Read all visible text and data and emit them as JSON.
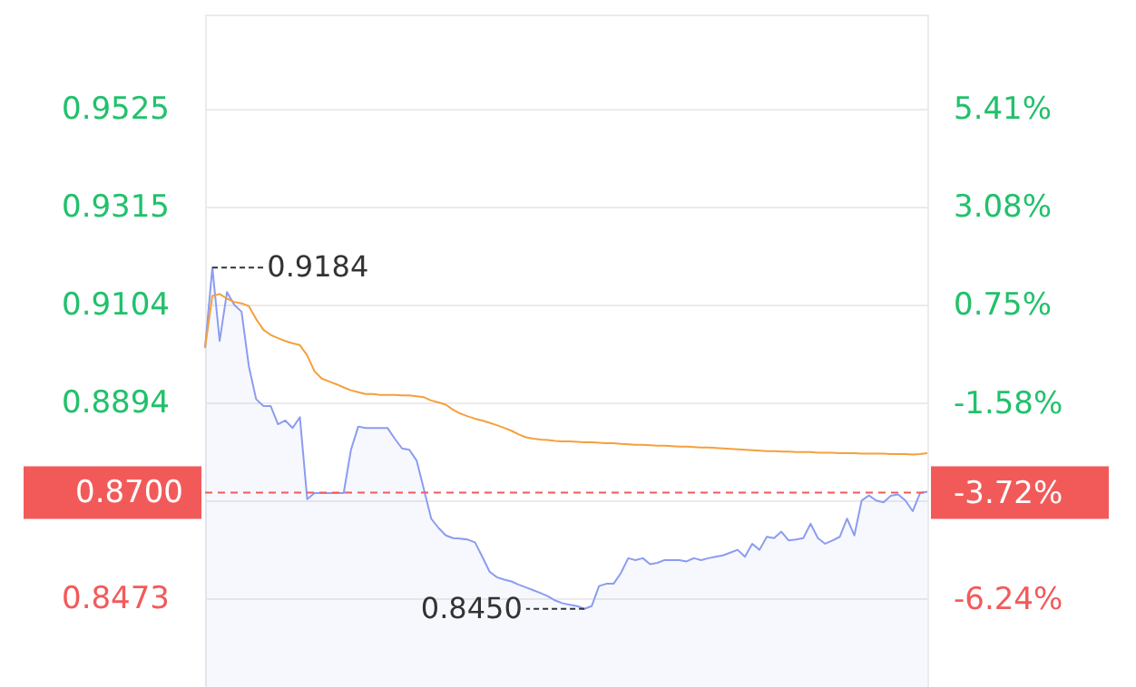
{
  "chart_data": {
    "type": "line",
    "categories": [
      null,
      null,
      null,
      null,
      null,
      null,
      null,
      null,
      null,
      null,
      null,
      null,
      null,
      null,
      null,
      null,
      null,
      null,
      null,
      null,
      null,
      null,
      null,
      null,
      null,
      null,
      null,
      null,
      null,
      null,
      null,
      null,
      null,
      null,
      null,
      null,
      null,
      null,
      null,
      null,
      null,
      null,
      null,
      null,
      null,
      null,
      null,
      null,
      null,
      null,
      null,
      null,
      null,
      null,
      null,
      null,
      null,
      null,
      null,
      null,
      null,
      null,
      null,
      null,
      null,
      null,
      null,
      null,
      null,
      null,
      null,
      null,
      null,
      null,
      null,
      null,
      null,
      null,
      null,
      null,
      null,
      null,
      null,
      null,
      null,
      null,
      null,
      null,
      null,
      null,
      null,
      null,
      null,
      null,
      null,
      null,
      null,
      null,
      null,
      null
    ],
    "series": [
      {
        "type": "area",
        "color": "#8c9cf0",
        "values": [
          0.9011,
          0.9184,
          0.9026,
          0.9131,
          0.9104,
          0.9089,
          0.8972,
          0.8901,
          0.8886,
          0.8886,
          0.8847,
          0.8855,
          0.8839,
          0.8862,
          0.8686,
          0.8699,
          0.8699,
          0.8699,
          0.8699,
          0.8699,
          0.8792,
          0.8842,
          0.8839,
          0.8839,
          0.8839,
          0.8839,
          0.8816,
          0.8795,
          0.8792,
          0.8769,
          0.8707,
          0.8644,
          0.8624,
          0.8608,
          0.8602,
          0.8601,
          0.8599,
          0.8593,
          0.8562,
          0.853,
          0.8518,
          0.8513,
          0.8509,
          0.8502,
          0.8496,
          0.849,
          0.8484,
          0.8477,
          0.8468,
          0.8462,
          0.8459,
          0.8456,
          0.845,
          0.8456,
          0.8499,
          0.8504,
          0.8504,
          0.8527,
          0.8559,
          0.8555,
          0.8559,
          0.8546,
          0.8549,
          0.8555,
          0.8555,
          0.8555,
          0.8552,
          0.8559,
          0.8555,
          0.8559,
          0.8562,
          0.8565,
          0.8571,
          0.8577,
          0.8562,
          0.859,
          0.8577,
          0.8605,
          0.8602,
          0.8616,
          0.8597,
          0.8599,
          0.8602,
          0.8633,
          0.8602,
          0.859,
          0.8597,
          0.8605,
          0.8644,
          0.8608,
          0.8683,
          0.8694,
          0.8683,
          0.8679,
          0.8693,
          0.8696,
          0.8683,
          0.866,
          0.8699,
          0.8702
        ]
      },
      {
        "color": "#f5a03c",
        "values": [
          0.9011,
          0.9123,
          0.9127,
          0.9117,
          0.911,
          0.9107,
          0.9101,
          0.9073,
          0.905,
          0.9039,
          0.9032,
          0.9026,
          0.9021,
          0.9017,
          0.8995,
          0.8961,
          0.8945,
          0.8939,
          0.8933,
          0.8926,
          0.892,
          0.8916,
          0.8912,
          0.8912,
          0.891,
          0.891,
          0.891,
          0.8909,
          0.8909,
          0.8907,
          0.8905,
          0.8898,
          0.8894,
          0.8889,
          0.8878,
          0.887,
          0.8864,
          0.8859,
          0.8855,
          0.885,
          0.8845,
          0.8839,
          0.8833,
          0.8825,
          0.8819,
          0.8816,
          0.8814,
          0.8813,
          0.8811,
          0.881,
          0.881,
          0.8809,
          0.8808,
          0.8808,
          0.8807,
          0.8806,
          0.8806,
          0.8805,
          0.8804,
          0.8803,
          0.8803,
          0.8802,
          0.8801,
          0.8801,
          0.88,
          0.8799,
          0.8799,
          0.8798,
          0.8797,
          0.8797,
          0.8796,
          0.8795,
          0.8794,
          0.8793,
          0.8792,
          0.8791,
          0.879,
          0.8789,
          0.8789,
          0.8788,
          0.8788,
          0.8787,
          0.8787,
          0.8787,
          0.8786,
          0.8786,
          0.8786,
          0.8785,
          0.8785,
          0.8785,
          0.8784,
          0.8784,
          0.8784,
          0.8784,
          0.8783,
          0.8783,
          0.8783,
          0.8782,
          0.8783,
          0.8785
        ]
      }
    ],
    "ylim": [
      0.8282,
      0.9728
    ],
    "yticks": [
      0.9525,
      0.9315,
      0.9104,
      0.8894,
      {
        "value": 0.8684,
        "label": null
      },
      0.8473
    ],
    "y2lim": [
      -8.34,
      7.66
    ],
    "y2ticks": [
      {
        "value": 5.41,
        "label": "5.41%"
      },
      {
        "value": 3.08,
        "label": "3.08%"
      },
      {
        "value": 0.75,
        "label": "0.75%"
      },
      {
        "value": -1.58,
        "label": "-1.58%"
      },
      {
        "value": -3.72,
        "label": "-3.72%"
      },
      {
        "value": -3.91,
        "label": null
      },
      {
        "value": -6.24,
        "label": "-6.24%"
      }
    ],
    "ref_lines": [
      {
        "axis": "y",
        "value": 0.87,
        "label": "0.8700",
        "color": "#f25a5a",
        "line_style": "dashed"
      }
    ],
    "annotations": [
      "0.9184",
      "0.8450"
    ],
    "grid": "y"
  }
}
